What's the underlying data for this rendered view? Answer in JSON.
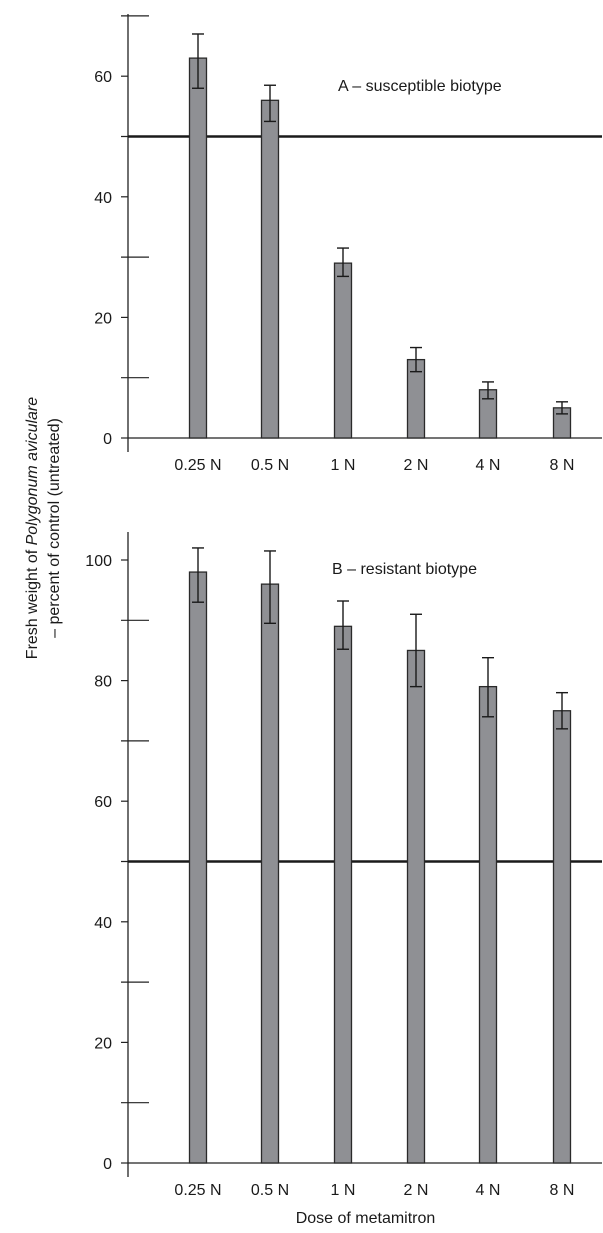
{
  "chart_data": [
    {
      "type": "bar",
      "title": "A – susceptible biotype",
      "categories": [
        "0.25 N",
        "0.5 N",
        "1 N",
        "2 N",
        "4 N",
        "8 N"
      ],
      "values": [
        63,
        56,
        29,
        13,
        8,
        5
      ],
      "error_high": [
        67,
        58.5,
        31.5,
        15,
        9.3,
        6
      ],
      "error_low": [
        58,
        52.5,
        26.8,
        11,
        6.5,
        4
      ],
      "ylim": [
        0,
        70
      ],
      "yticks": [
        0,
        20,
        40,
        60
      ],
      "ylabels": [
        "0",
        "20",
        "40",
        "60"
      ],
      "reference_line": 50,
      "bar_color": "#8f9094"
    },
    {
      "type": "bar",
      "title": "B – resistant biotype",
      "categories": [
        "0.25 N",
        "0.5 N",
        "1 N",
        "2 N",
        "4 N",
        "8 N"
      ],
      "values": [
        98,
        96,
        89,
        85,
        79,
        75
      ],
      "error_high": [
        102,
        101.5,
        93.2,
        91,
        83.8,
        78
      ],
      "error_low": [
        93,
        89.5,
        85.2,
        79,
        74,
        72
      ],
      "ylim": [
        0,
        102
      ],
      "yticks": [
        0,
        20,
        40,
        60,
        80,
        100
      ],
      "ylabels": [
        "0",
        "20",
        "40",
        "60",
        "80",
        "100"
      ],
      "reference_line": 50,
      "bar_color": "#8f9094"
    }
  ],
  "ylabel": {
    "prefix": "Fresh weight of ",
    "species": "Polygonum aviculare",
    "line2": "– percent of control (untreated)"
  },
  "xlabel": "Dose of metamitron"
}
